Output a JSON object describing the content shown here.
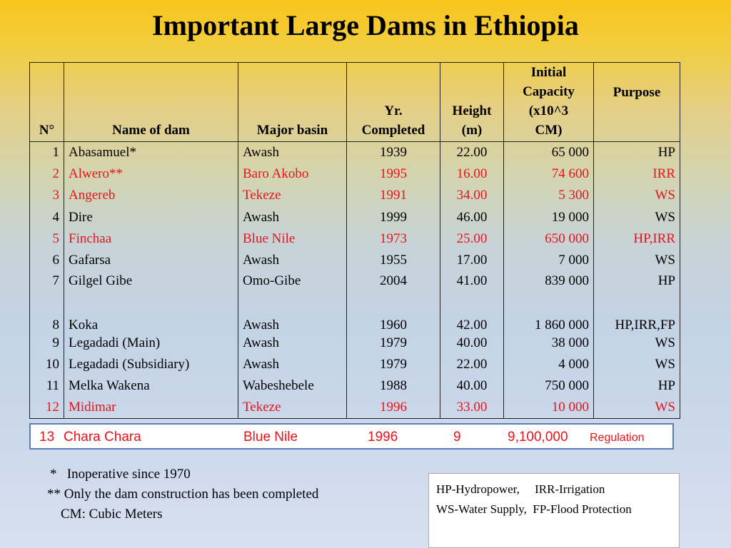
{
  "title": "Important Large Dams in Ethiopia",
  "headers": {
    "no": "N°",
    "name": "Name of dam",
    "basin": "Major basin",
    "year_line1": "Yr.",
    "year_line2": "Completed",
    "height_line1": "Height",
    "height_line2": "(m)",
    "capacity_line1": "Initial",
    "capacity_line2": "Capacity",
    "capacity_line3": "(x10^3",
    "capacity_line4": "CM)",
    "purpose": "Purpose"
  },
  "rows": [
    {
      "no": "1",
      "name": "Abasamuel*",
      "basin": "Awash",
      "year": "1939",
      "height": "22.00",
      "capacity": "65 000",
      "purpose": "HP",
      "highlight": false
    },
    {
      "no": "2",
      "name": "Alwero**",
      "basin": "Baro Akobo",
      "year": "1995",
      "height": "16.00",
      "capacity": "74 600",
      "purpose": "IRR",
      "highlight": true
    },
    {
      "no": "3",
      "name": "Angereb",
      "basin": "Tekeze",
      "year": "1991",
      "height": "34.00",
      "capacity": "5 300",
      "purpose": "WS",
      "highlight": true
    },
    {
      "no": "4",
      "name": "Dire",
      "basin": "Awash",
      "year": "1999",
      "height": "46.00",
      "capacity": "19 000",
      "purpose": "WS",
      "highlight": false
    },
    {
      "no": "5",
      "name": "Finchaa",
      "basin": "Blue Nile",
      "year": "1973",
      "height": "25.00",
      "capacity": "650 000",
      "purpose": "HP,IRR",
      "highlight": true
    },
    {
      "no": "6",
      "name": "Gafarsa",
      "basin": "Awash",
      "year": "1955",
      "height": "17.00",
      "capacity": "7 000",
      "purpose": "WS",
      "highlight": false
    },
    {
      "no": "7",
      "name": "Gilgel Gibe",
      "basin": "Omo-Gibe",
      "year": "2004",
      "height": "41.00",
      "capacity": "839 000",
      "purpose": "HP",
      "highlight": false
    },
    {
      "no": "8",
      "name": "Koka",
      "basin": "Awash",
      "year": "1960",
      "height": "42.00",
      "capacity": "1 860 000",
      "purpose": "HP,IRR,FP",
      "highlight": false
    },
    {
      "no": "9",
      "name": "Legadadi (Main)",
      "basin": "Awash",
      "year": "1979",
      "height": "40.00",
      "capacity": "38 000",
      "purpose": "WS",
      "highlight": false
    },
    {
      "no": "10",
      "name": "Legadadi (Subsidiary)",
      "basin": "Awash",
      "year": "1979",
      "height": "22.00",
      "capacity": "4 000",
      "purpose": "WS",
      "highlight": false
    },
    {
      "no": "11",
      "name": "Melka Wakena",
      "basin": "Wabeshebele",
      "year": "1988",
      "height": "40.00",
      "capacity": "750 000",
      "purpose": "HP",
      "highlight": false
    },
    {
      "no": "12",
      "name": "Midimar",
      "basin": "Tekeze",
      "year": "1996",
      "height": "33.00",
      "capacity": "10 000",
      "purpose": "WS",
      "highlight": true
    }
  ],
  "extra_row": {
    "no": "13",
    "name": "Chara Chara",
    "basin": "Blue Nile",
    "year": "1996",
    "height": "9",
    "capacity": "9,100,000",
    "purpose": "Regulation"
  },
  "notes": {
    "line1": "*   Inoperative since 1970",
    "line2": "** Only the dam construction has been completed",
    "line3": "    CM: Cubic Meters"
  },
  "legend": {
    "line1": "HP-Hydropower,     IRR-Irrigation",
    "line2": "WS-Water Supply,  FP-Flood Protection"
  },
  "colors": {
    "highlight": "#e8141a",
    "extra_border": "#5a7fb7"
  }
}
